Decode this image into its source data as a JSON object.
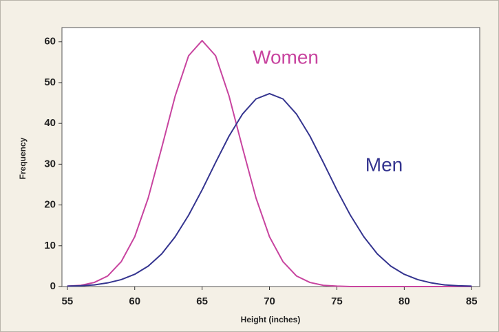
{
  "chart_data": {
    "type": "line",
    "xlabel": "Height (inches)",
    "ylabel": "Frequency",
    "annotations": [
      "Women",
      "Men"
    ],
    "x": [
      55,
      56,
      57,
      58,
      59,
      60,
      61,
      62,
      63,
      64,
      65,
      66,
      67,
      68,
      69,
      70,
      71,
      72,
      73,
      74,
      75,
      76,
      77,
      78,
      79,
      80,
      81,
      82,
      83,
      84,
      85
    ],
    "series": [
      {
        "name": "Women",
        "color": "#c8449f",
        "values": [
          0.1,
          0.3,
          1.0,
          2.6,
          6.1,
          12.2,
          21.7,
          34.0,
          46.7,
          56.6,
          60.3,
          56.6,
          46.7,
          34.0,
          21.7,
          12.2,
          6.1,
          2.6,
          1.0,
          0.3,
          0.1,
          0,
          0,
          0,
          0,
          0,
          0,
          0,
          0,
          0,
          0
        ]
      },
      {
        "name": "Men",
        "color": "#34348f",
        "values": [
          0.1,
          0.2,
          0.4,
          0.9,
          1.7,
          3.0,
          5.0,
          8.0,
          12.2,
          17.5,
          23.7,
          30.4,
          36.9,
          42.3,
          46.0,
          47.3,
          46.0,
          42.3,
          36.9,
          30.4,
          23.7,
          17.5,
          12.2,
          8.0,
          5.0,
          3.0,
          1.7,
          0.9,
          0.4,
          0.2,
          0.1
        ]
      }
    ],
    "xlim": [
      54.6,
      85.6
    ],
    "ylim": [
      0,
      63.5
    ],
    "xticks": [
      55,
      60,
      65,
      70,
      75,
      80,
      85
    ],
    "yticks": [
      0,
      10,
      20,
      30,
      40,
      50,
      60
    ]
  }
}
